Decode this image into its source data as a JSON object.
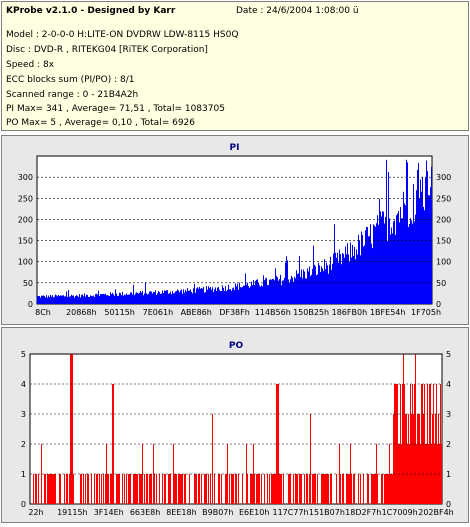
{
  "header": {
    "title": "KProbe v2.1.0 - Designed by Karr",
    "date": "Date : 24/6/2004 1:08:00 ü",
    "lines": [
      "Model : 2-0-0-0 H:LITE-ON DVDRW LDW-8115   HS0Q",
      "Disc : DVD-R , RITEKG04 [RiTEK Corporation]",
      "Speed : 8x",
      "ECC blocks sum (PI/PO) : 8/1",
      "Scanned range : 0 - 21B4A2h",
      "PI Max= 341 , Average= 71,51 , Total= 1083705",
      "PO Max= 5 , Average= 0,10 , Total= 6926"
    ]
  },
  "colors": {
    "pi": "#0000ff",
    "po": "#ff0000",
    "panel_bg": "#e8e8e8",
    "plot_bg": "#ffffff",
    "title": "#000080",
    "info_bg": "#ffffe1"
  },
  "chart_data": [
    {
      "type": "bar",
      "title": "PI",
      "ylim": [
        0,
        350
      ],
      "yticks": [
        0,
        50,
        100,
        150,
        200,
        250,
        300
      ],
      "grid": true,
      "xticklabels": [
        "8Ch",
        "20868h",
        "50115h",
        "7E061h",
        "ABE86h",
        "DF38Fh",
        "114B56h",
        "150B25h",
        "186FB0h",
        "1BFE54h",
        "1F705h"
      ],
      "envelope": {
        "fractions": [
          0,
          0.1,
          0.2,
          0.3,
          0.4,
          0.5,
          0.6,
          0.7,
          0.75,
          0.8,
          0.85,
          0.9,
          0.95,
          1.0
        ],
        "values": [
          18,
          20,
          24,
          28,
          33,
          42,
          55,
          80,
          100,
          130,
          170,
          210,
          250,
          280
        ]
      },
      "max": 341,
      "average": 71.51
    },
    {
      "type": "bar",
      "title": "PO",
      "ylim": [
        0,
        5
      ],
      "yticks": [
        0,
        1,
        2,
        3,
        4,
        5
      ],
      "grid": true,
      "xticklabels": [
        "22h",
        "19115h",
        "3F14Eh",
        "663E8h",
        "8EE18h",
        "B9B07h",
        "E6E10h",
        "117C77h",
        "151B07h",
        "18D2F7h",
        "1C7009h",
        "202BF4h"
      ],
      "max": 5,
      "average": 0.1
    }
  ]
}
